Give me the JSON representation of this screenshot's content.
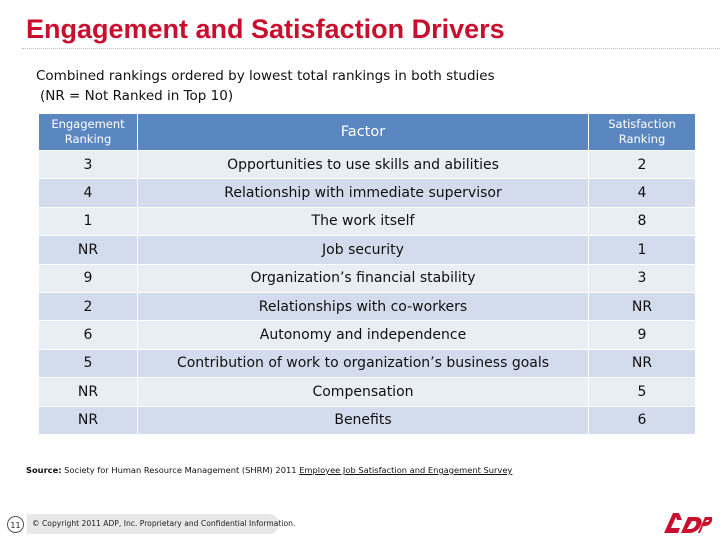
{
  "slide": {
    "title": "Engagement and Satisfaction Drivers",
    "subtitle_line1": "Combined rankings ordered by lowest total rankings in both studies",
    "subtitle_line2": "(NR = Not Ranked in Top 10)"
  },
  "table": {
    "headers": {
      "engagement": "Engagement Ranking",
      "factor": "Factor",
      "satisfaction": "Satisfaction Ranking"
    },
    "rows": [
      {
        "engagement": "3",
        "factor": "Opportunities to use skills and abilities",
        "satisfaction": "2"
      },
      {
        "engagement": "4",
        "factor": "Relationship with immediate supervisor",
        "satisfaction": "4"
      },
      {
        "engagement": "1",
        "factor": "The work itself",
        "satisfaction": "8"
      },
      {
        "engagement": "NR",
        "factor": "Job security",
        "satisfaction": "1"
      },
      {
        "engagement": "9",
        "factor": "Organization’s financial stability",
        "satisfaction": "3"
      },
      {
        "engagement": "2",
        "factor": "Relationships with co-workers",
        "satisfaction": "NR"
      },
      {
        "engagement": "6",
        "factor": "Autonomy and independence",
        "satisfaction": "9"
      },
      {
        "engagement": "5",
        "factor": "Contribution of work to organization’s business goals",
        "satisfaction": "NR"
      },
      {
        "engagement": "NR",
        "factor": "Compensation",
        "satisfaction": "5"
      },
      {
        "engagement": "NR",
        "factor": "Benefits",
        "satisfaction": "6"
      }
    ]
  },
  "source": {
    "prefix": "Source:",
    "text": " Society for Human Resource Management (SHRM) 2011 ",
    "link_text": "Employee Job Satisfaction and Engagement Survey"
  },
  "footer": {
    "page_number": "11",
    "copyright": "© Copyright 2011 ADP, Inc. Proprietary and Confidential Information.",
    "logo_text": "ADP",
    "logo_icon": "adp-logo-icon",
    "logo_color": "#c8102e"
  },
  "colors": {
    "title": "#c8102e",
    "header_bg": "#5b87c0",
    "row_light": "#e9edf4",
    "row_dark": "#d3dcec"
  }
}
